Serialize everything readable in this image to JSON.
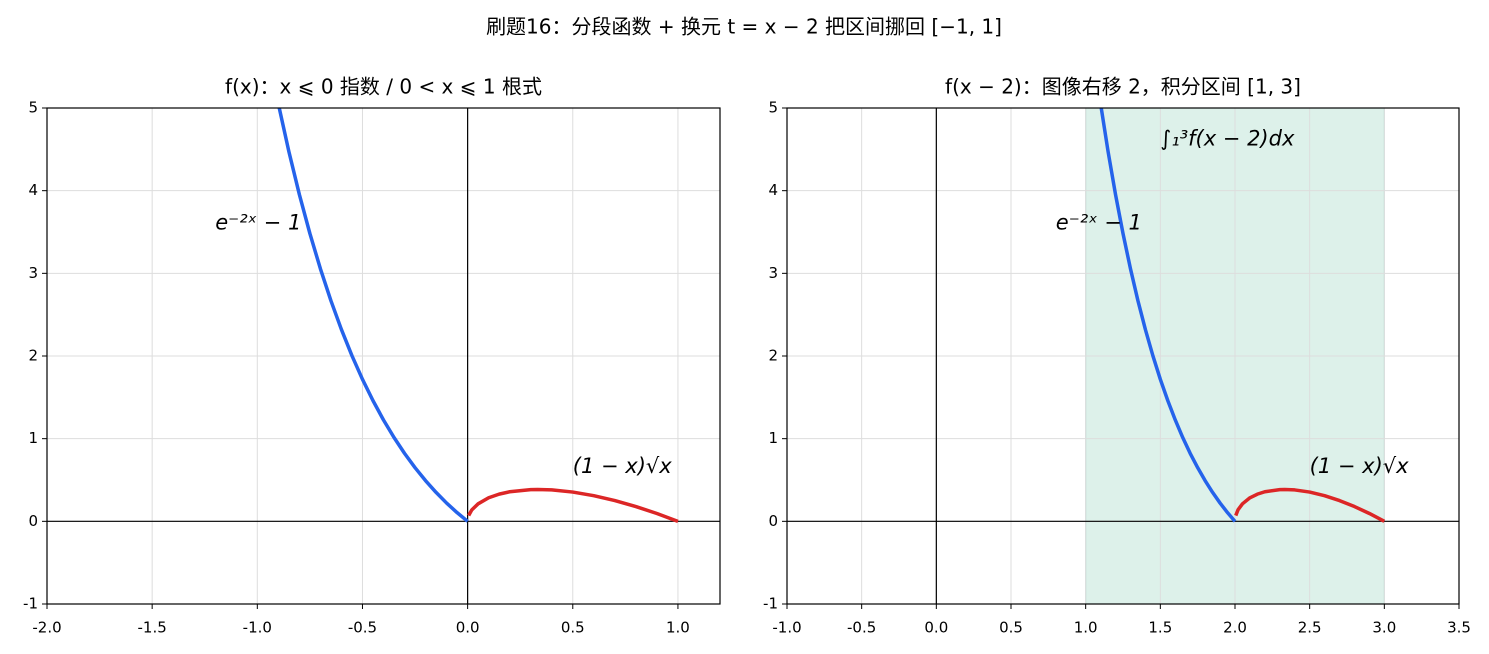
{
  "title": "刷题16：分段函数 + 换元 t = x − 2 把区间挪回 [−1, 1]",
  "chart_data": [
    {
      "type": "line",
      "title": "f(x)：x ⩽ 0 指数 / 0 < x ⩽ 1 根式",
      "xlim": [
        -2,
        1.2
      ],
      "ylim": [
        -1,
        5
      ],
      "xticks": [
        {
          "value": -2,
          "label": "-2.0"
        },
        {
          "value": -1.5,
          "label": "-1.5"
        },
        {
          "value": -1,
          "label": "-1.0"
        },
        {
          "value": -0.5,
          "label": "-0.5"
        },
        {
          "value": 0,
          "label": "0.0"
        },
        0.5,
        {
          "value": 1,
          "label": "1.0"
        }
      ],
      "yticks": [
        -1,
        0,
        1,
        2,
        3,
        4,
        5
      ],
      "grid": true,
      "series": [
        {
          "name": "e⁻²ˣ − 1",
          "color": "#2563eb",
          "x": [
            -0.9,
            -0.85,
            -0.8,
            -0.75,
            -0.7,
            -0.65,
            -0.6,
            -0.55,
            -0.5,
            -0.45,
            -0.4,
            -0.35,
            -0.3,
            -0.25,
            -0.2,
            -0.15,
            -0.1,
            -0.05,
            0
          ],
          "values": [
            5.05,
            4.474,
            3.953,
            3.482,
            3.055,
            2.669,
            2.32,
            2.004,
            1.718,
            1.46,
            1.226,
            1.014,
            0.822,
            0.649,
            0.492,
            0.35,
            0.221,
            0.105,
            0
          ]
        },
        {
          "name": "(1 − x)√x",
          "color": "#dc2626",
          "x": [
            0.005,
            0.02,
            0.05,
            0.1,
            0.15,
            0.2,
            0.3,
            0.333,
            0.4,
            0.5,
            0.6,
            0.7,
            0.8,
            0.9,
            1
          ],
          "values": [
            0.07,
            0.139,
            0.212,
            0.285,
            0.329,
            0.358,
            0.383,
            0.385,
            0.38,
            0.354,
            0.31,
            0.251,
            0.179,
            0.095,
            0
          ]
        }
      ]
    },
    {
      "type": "line",
      "title": "f(x − 2)：图像右移 2，积分区间 [1, 3]",
      "xlim": [
        -1,
        3.5
      ],
      "ylim": [
        -1,
        5
      ],
      "xticks": [
        {
          "value": -1,
          "label": "-1.0"
        },
        {
          "value": -0.5,
          "label": "-0.5"
        },
        {
          "value": 0,
          "label": "0.0"
        },
        0.5,
        {
          "value": 1,
          "label": "1.0"
        },
        1.5,
        {
          "value": 2,
          "label": "2.0"
        },
        2.5,
        {
          "value": 3,
          "label": "3.0"
        },
        3.5
      ],
      "yticks": [
        -1,
        0,
        1,
        2,
        3,
        4,
        5
      ],
      "grid": true,
      "span": {
        "range": [
          1,
          3
        ],
        "color": "#0f9d6b"
      },
      "annotation": {
        "text": "∫₁³f(x − 2)dx",
        "color": "#0f9d6b"
      },
      "series": [
        {
          "name": "e⁻²ˣ − 1",
          "color": "#2563eb",
          "x": [
            1.1,
            1.15,
            1.2,
            1.25,
            1.3,
            1.35,
            1.4,
            1.45,
            1.5,
            1.55,
            1.6,
            1.65,
            1.7,
            1.75,
            1.8,
            1.85,
            1.9,
            1.95,
            2
          ],
          "values": [
            5.05,
            4.474,
            3.953,
            3.482,
            3.055,
            2.669,
            2.32,
            2.004,
            1.718,
            1.46,
            1.226,
            1.014,
            0.822,
            0.649,
            0.492,
            0.35,
            0.221,
            0.105,
            0
          ]
        },
        {
          "name": "(1 − x)√x",
          "color": "#dc2626",
          "x": [
            2.005,
            2.02,
            2.05,
            2.1,
            2.15,
            2.2,
            2.3,
            2.333,
            2.4,
            2.5,
            2.6,
            2.7,
            2.8,
            2.9,
            3
          ],
          "values": [
            0.07,
            0.139,
            0.212,
            0.285,
            0.329,
            0.358,
            0.383,
            0.385,
            0.38,
            0.354,
            0.31,
            0.251,
            0.179,
            0.095,
            0
          ]
        }
      ]
    }
  ]
}
